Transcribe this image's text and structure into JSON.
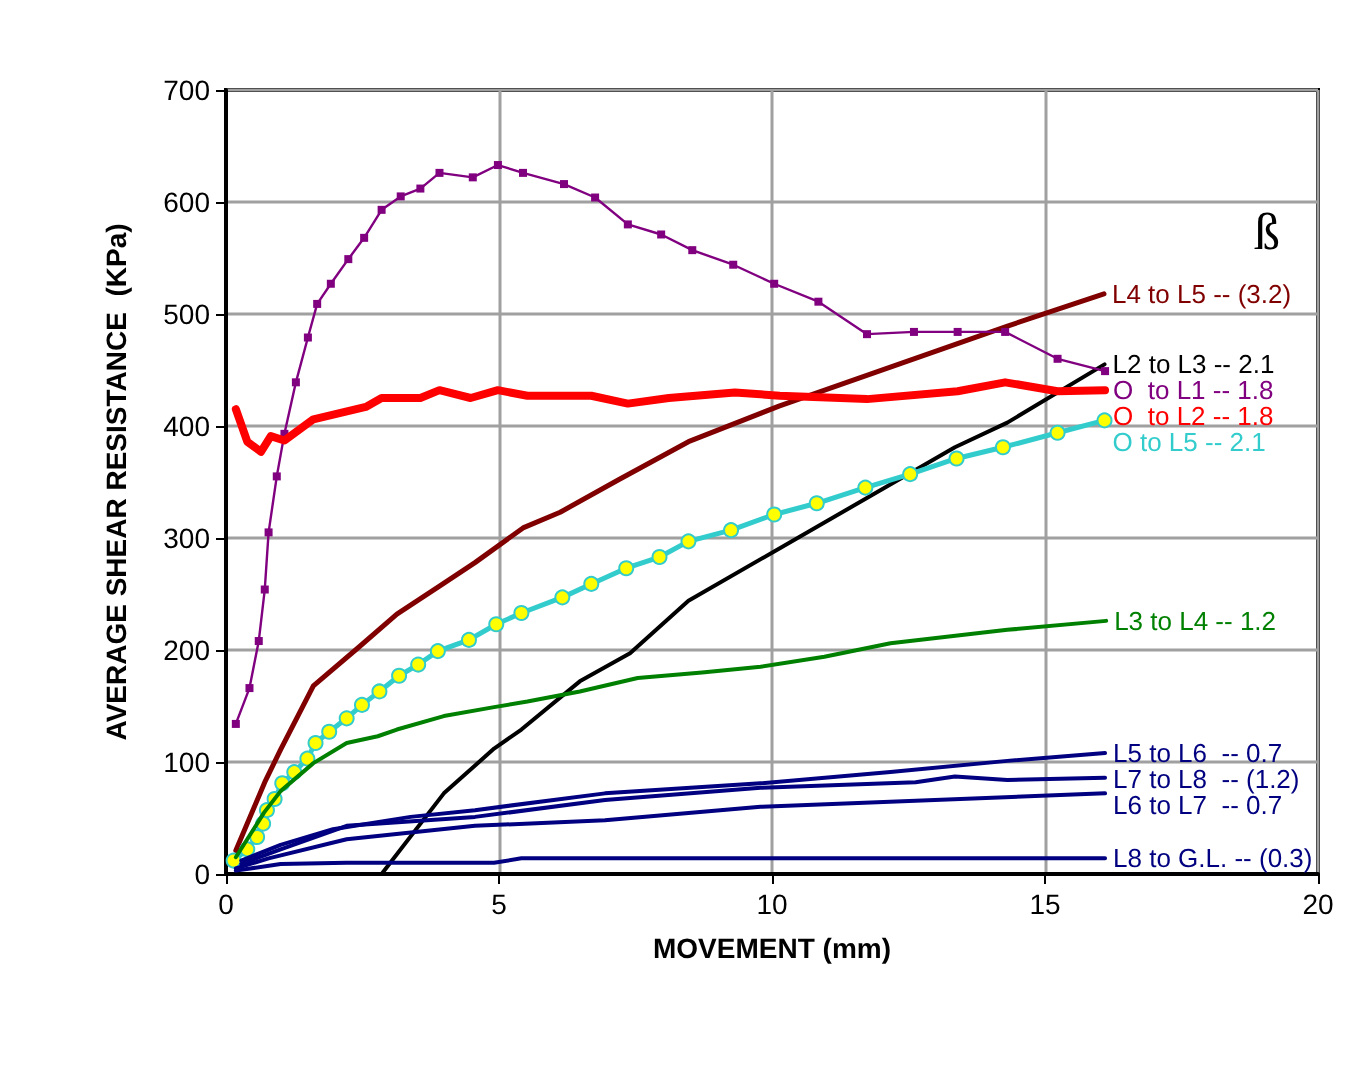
{
  "chart_data": {
    "type": "line",
    "xlabel": "MOVEMENT (mm)",
    "ylabel": "AVERAGE SHEAR RESISTANCE  (KPa)",
    "xlim": [
      0,
      20
    ],
    "xticks": [
      0,
      5,
      10,
      15,
      20
    ],
    "ylim": [
      0,
      700
    ],
    "yticks": [
      0,
      100,
      200,
      300,
      400,
      500,
      600,
      700
    ],
    "grid": true,
    "legend": false,
    "annotations": [
      "ß"
    ],
    "series": [
      {
        "name": "L4 to L5 -- (3.2)",
        "color": "#800000",
        "marker": "none",
        "x": [
          0.18,
          0.71,
          1.0,
          1.6,
          2.42,
          3.13,
          3.91,
          4.56,
          5.44,
          6.12,
          7.19,
          8.47,
          10.14,
          14.3,
          16.08
        ],
        "values": [
          21,
          82,
          111,
          168,
          202,
          232,
          257,
          278,
          309,
          323,
          352,
          386,
          418,
          489,
          518
        ]
      },
      {
        "name": "L2 to L3 -- 2.1",
        "color": "#000000",
        "marker": "none",
        "x": [
          2.85,
          3.99,
          4.91,
          5.41,
          6.48,
          7.4,
          8.47,
          10.04,
          13.35,
          14.31,
          16.09
        ],
        "values": [
          0,
          72,
          112,
          129,
          172,
          197,
          244,
          288,
          381,
          403,
          455
        ]
      },
      {
        "name": "O  to L1 -- 1.8",
        "color": "#800080",
        "marker": "square",
        "x": [
          0.18,
          0.43,
          0.6,
          0.71,
          0.78,
          0.93,
          1.07,
          1.28,
          1.5,
          1.67,
          1.92,
          2.24,
          2.53,
          2.85,
          3.2,
          3.56,
          3.91,
          4.52,
          4.98,
          5.44,
          6.19,
          6.76,
          7.36,
          7.97,
          8.54,
          9.29,
          10.04,
          10.85,
          11.74,
          12.6,
          13.4,
          14.27,
          15.23,
          16.1
        ],
        "values": [
          134,
          166,
          208,
          254,
          305,
          355,
          393,
          439,
          479,
          509,
          527,
          549,
          568,
          593,
          605,
          612,
          626,
          622,
          633,
          626,
          616,
          604,
          580,
          571,
          557,
          544,
          527,
          511,
          482,
          484,
          484,
          484,
          460,
          449
        ]
      },
      {
        "name": "O  to L2 -- 1.8",
        "color": "#ff0000",
        "marker": "none",
        "x": [
          0.18,
          0.39,
          0.64,
          0.82,
          1.07,
          1.6,
          2.56,
          2.85,
          3.56,
          3.91,
          4.48,
          4.98,
          5.52,
          6.69,
          7.36,
          8.11,
          9.32,
          10.14,
          11.74,
          13.4,
          14.27,
          15.23,
          16.1
        ],
        "values": [
          415,
          386,
          377,
          391,
          387,
          406,
          417,
          425,
          425,
          432,
          425,
          432,
          427,
          427,
          420,
          425,
          430,
          427,
          424,
          431,
          439,
          431,
          432
        ]
      },
      {
        "name": "O to L5 -- 2.1",
        "color": "#33cccc",
        "marker": "circle",
        "x": [
          0.14,
          0.39,
          0.57,
          0.68,
          0.75,
          0.89,
          1.03,
          1.25,
          1.49,
          1.64,
          1.89,
          2.21,
          2.49,
          2.81,
          3.17,
          3.52,
          3.88,
          4.45,
          4.95,
          5.41,
          6.16,
          6.69,
          7.33,
          7.94,
          8.47,
          9.25,
          10.04,
          10.82,
          11.71,
          12.53,
          13.38,
          14.23,
          15.23,
          16.09
        ],
        "values": [
          12,
          22,
          33,
          45,
          57,
          67,
          81,
          91,
          103,
          117,
          127,
          139,
          151,
          163,
          177,
          187,
          199,
          209,
          223,
          233,
          247,
          259,
          273,
          283,
          297,
          307,
          321,
          331,
          345,
          357,
          371,
          381,
          394,
          405
        ]
      },
      {
        "name": "L3 to L4 -- 1.2",
        "color": "#008000",
        "marker": "none",
        "x": [
          0.18,
          0.7,
          1.0,
          1.6,
          2.21,
          2.78,
          3.13,
          3.99,
          4.91,
          5.52,
          6.48,
          7.54,
          8.72,
          9.79,
          10.96,
          12.17,
          14.31,
          16.12
        ],
        "values": [
          15,
          55,
          74,
          99,
          117,
          123,
          129,
          141,
          149,
          154,
          163,
          175,
          180,
          185,
          194,
          206,
          218,
          226
        ]
      },
      {
        "name": "L5 to L6  -- 0.7",
        "color": "#000080",
        "marker": "none",
        "x": [
          0.28,
          1.0,
          1.96,
          3.38,
          4.56,
          6.94,
          9.79,
          12.17,
          14.31,
          16.1
        ],
        "values": [
          12,
          26,
          40,
          51,
          57,
          72,
          81,
          91,
          101,
          108
        ]
      },
      {
        "name": "L7 to L8  -- (1.2)",
        "color": "#000080",
        "marker": "none",
        "x": [
          0.28,
          1.0,
          2.21,
          4.56,
          6.94,
          9.79,
          12.63,
          13.35,
          14.31,
          16.1
        ],
        "values": [
          9,
          22,
          43,
          51,
          66,
          77,
          82,
          87,
          84,
          86
        ]
      },
      {
        "name": "L6 to L7  -- 0.7",
        "color": "#000080",
        "marker": "none",
        "x": [
          0.18,
          0.78,
          2.21,
          4.56,
          6.94,
          9.79,
          16.1
        ],
        "values": [
          5,
          14,
          31,
          43,
          48,
          60,
          72
        ]
      },
      {
        "name": "L8 to G.L. -- (0.3)",
        "color": "#000080",
        "marker": "none",
        "x": [
          0.18,
          1.0,
          2.21,
          4.91,
          5.41,
          16.1
        ],
        "values": [
          3,
          9,
          10,
          10,
          14,
          14
        ]
      }
    ]
  }
}
